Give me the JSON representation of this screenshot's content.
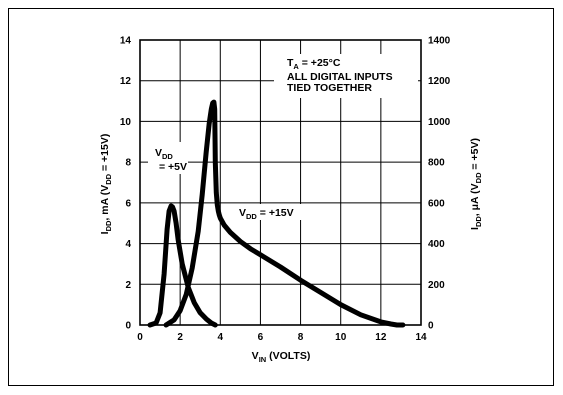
{
  "chart_data": {
    "type": "line",
    "xlim": [
      0,
      14
    ],
    "ylim": [
      0,
      14
    ],
    "y2lim": [
      0,
      1400
    ],
    "grid": true,
    "x_ticks": [
      "0",
      "2",
      "4",
      "6",
      "8",
      "10",
      "12",
      "14"
    ],
    "y_ticks": [
      "0",
      "2",
      "4",
      "6",
      "8",
      "10",
      "12",
      "14"
    ],
    "y2_ticks": [
      "0",
      "200",
      "400",
      "600",
      "800",
      "1000",
      "1200",
      "1400"
    ],
    "xlabel": {
      "main": "V",
      "sub": "IN",
      "rest": " (VOLTS)"
    },
    "ylabel_left": {
      "p1": "I",
      "s1": "DD",
      "p2": ", mA (V",
      "s2": "DD",
      "p3": " = +15V)"
    },
    "ylabel_right": {
      "p1": "I",
      "s1": "DD",
      "p2": ", μA (V",
      "s2": "DD",
      "p3": " = +5V)"
    },
    "annotations": {
      "ta": {
        "main": "T",
        "sub": "A",
        "rest": " = +25°C"
      },
      "line2": "ALL DIGITAL INPUTS",
      "line3": "TIED TOGETHER",
      "vdd5": {
        "main": "V",
        "sub": "DD",
        "rest": "= +5V"
      },
      "vdd15": {
        "main": "V",
        "sub": "DD",
        "rest": " = +15V"
      }
    },
    "series": [
      {
        "axis": "right",
        "x": [
          0.5,
          0.8,
          1.0,
          1.2,
          1.35,
          1.45,
          1.55,
          1.62,
          1.7,
          1.8,
          1.9,
          2.1,
          2.4,
          2.7,
          3.0,
          3.3,
          3.55,
          3.75
        ],
        "y": [
          0,
          10,
          60,
          250,
          470,
          560,
          585,
          580,
          560,
          500,
          420,
          300,
          185,
          110,
          60,
          30,
          10,
          0
        ]
      },
      {
        "axis": "left",
        "x": [
          1.3,
          1.7,
          2.0,
          2.3,
          2.6,
          2.9,
          3.1,
          3.3,
          3.45,
          3.55,
          3.62,
          3.68,
          3.72,
          3.75,
          3.8,
          3.85,
          3.9,
          3.95,
          4.0,
          4.2,
          4.5,
          5.0,
          5.5,
          6.0,
          7.0,
          8.0,
          9.0,
          10.0,
          11.0,
          12.0,
          12.5,
          12.8,
          13.1
        ],
        "y": [
          0,
          0.25,
          0.7,
          1.5,
          2.8,
          4.6,
          6.4,
          8.5,
          9.9,
          10.6,
          10.9,
          10.95,
          10.6,
          8.0,
          6.5,
          5.9,
          5.6,
          5.4,
          5.25,
          4.9,
          4.55,
          4.1,
          3.75,
          3.45,
          2.85,
          2.2,
          1.6,
          1.0,
          0.5,
          0.15,
          0.05,
          0.0,
          0.0
        ]
      }
    ]
  }
}
